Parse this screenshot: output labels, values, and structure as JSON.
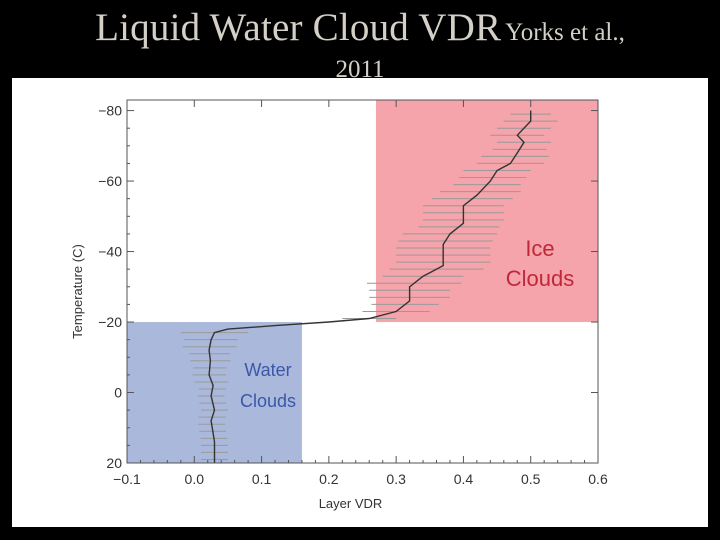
{
  "slide": {
    "title_main": "Liquid Water Cloud VDR",
    "title_citation": "Yorks et al.,",
    "title_year": "2011"
  },
  "colors": {
    "ice_region": "#f4a4aa",
    "water_region": "#aab8dc",
    "ice_text": "#c0283a",
    "water_text": "#3a58a8",
    "profile_line": "#333333",
    "error_bars": "#9a9a9a"
  },
  "chart_data": {
    "type": "line",
    "xlabel": "Layer VDR",
    "ylabel": "Temperature (C)",
    "xlim": [
      -0.1,
      0.6
    ],
    "ylim": [
      20,
      -83
    ],
    "x_ticks": [
      -0.1,
      0.0,
      0.1,
      0.2,
      0.3,
      0.4,
      0.5,
      0.6
    ],
    "x_tick_labels": [
      "−0.1",
      "0.0",
      "0.1",
      "0.2",
      "0.3",
      "0.4",
      "0.5",
      "0.6"
    ],
    "y_ticks": [
      -80,
      -60,
      -40,
      -20,
      0,
      20
    ],
    "y_tick_labels": [
      "−80",
      "−60",
      "−40",
      "−20",
      "0",
      "20"
    ],
    "regions": [
      {
        "label_lines": [
          "Ice",
          "Clouds"
        ],
        "x_range": [
          0.27,
          0.6
        ],
        "y_range": [
          -20,
          -83
        ]
      },
      {
        "label_lines": [
          "Water",
          "Clouds"
        ],
        "x_range": [
          -0.1,
          0.16
        ],
        "y_range": [
          20,
          -20
        ]
      }
    ],
    "series": [
      {
        "x": [
          0.03,
          0.03,
          0.025,
          0.03,
          0.025,
          0.028,
          0.022,
          0.024,
          0.022,
          0.025,
          0.03,
          0.05,
          0.12,
          0.2,
          0.26,
          0.3,
          0.32,
          0.32,
          0.34,
          0.35,
          0.37,
          0.37,
          0.37,
          0.38,
          0.4,
          0.4,
          0.42,
          0.44,
          0.45,
          0.47,
          0.48,
          0.49,
          0.48,
          0.5,
          0.5
        ],
        "y": [
          20,
          14,
          8,
          5,
          1,
          -2,
          -5,
          -9,
          -12,
          -15,
          -17,
          -18,
          -19,
          -20,
          -21,
          -23,
          -26,
          -30,
          -33,
          -34,
          -36,
          -39,
          -42,
          -45,
          -48,
          -53,
          -56,
          -60,
          -63,
          -65,
          -68,
          -71,
          -73,
          -77,
          -80
        ]
      }
    ],
    "error_bars": [
      {
        "y": 19,
        "half_width": 0.02
      },
      {
        "y": 17,
        "half_width": 0.02
      },
      {
        "y": 15,
        "half_width": 0.02
      },
      {
        "y": 13,
        "half_width": 0.02
      },
      {
        "y": 11,
        "half_width": 0.02
      },
      {
        "y": 9,
        "half_width": 0.02
      },
      {
        "y": 7,
        "half_width": 0.02
      },
      {
        "y": 5,
        "half_width": 0.02
      },
      {
        "y": 3,
        "half_width": 0.02
      },
      {
        "y": 1,
        "half_width": 0.02
      },
      {
        "y": -1,
        "half_width": 0.02
      },
      {
        "y": -3,
        "half_width": 0.025
      },
      {
        "y": -5,
        "half_width": 0.025
      },
      {
        "y": -7,
        "half_width": 0.025
      },
      {
        "y": -9,
        "half_width": 0.03
      },
      {
        "y": -11,
        "half_width": 0.03
      },
      {
        "y": -13,
        "half_width": 0.04
      },
      {
        "y": -15,
        "half_width": 0.04
      },
      {
        "y": -17,
        "half_width": 0.05
      },
      {
        "y": -21,
        "half_width": 0.04
      },
      {
        "y": -23,
        "half_width": 0.05
      },
      {
        "y": -25,
        "half_width": 0.05
      },
      {
        "y": -27,
        "half_width": 0.06
      },
      {
        "y": -29,
        "half_width": 0.06
      },
      {
        "y": -31,
        "half_width": 0.07
      },
      {
        "y": -33,
        "half_width": 0.06
      },
      {
        "y": -35,
        "half_width": 0.07
      },
      {
        "y": -37,
        "half_width": 0.07
      },
      {
        "y": -39,
        "half_width": 0.07
      },
      {
        "y": -41,
        "half_width": 0.07
      },
      {
        "y": -43,
        "half_width": 0.07
      },
      {
        "y": -45,
        "half_width": 0.07
      },
      {
        "y": -47,
        "half_width": 0.06
      },
      {
        "y": -49,
        "half_width": 0.06
      },
      {
        "y": -51,
        "half_width": 0.06
      },
      {
        "y": -53,
        "half_width": 0.06
      },
      {
        "y": -55,
        "half_width": 0.06
      },
      {
        "y": -57,
        "half_width": 0.06
      },
      {
        "y": -59,
        "half_width": 0.05
      },
      {
        "y": -61,
        "half_width": 0.05
      },
      {
        "y": -63,
        "half_width": 0.05
      },
      {
        "y": -65,
        "half_width": 0.05
      },
      {
        "y": -67,
        "half_width": 0.05
      },
      {
        "y": -69,
        "half_width": 0.04
      },
      {
        "y": -71,
        "half_width": 0.04
      },
      {
        "y": -73,
        "half_width": 0.04
      },
      {
        "y": -75,
        "half_width": 0.04
      },
      {
        "y": -77,
        "half_width": 0.04
      },
      {
        "y": -79,
        "half_width": 0.03
      }
    ]
  }
}
